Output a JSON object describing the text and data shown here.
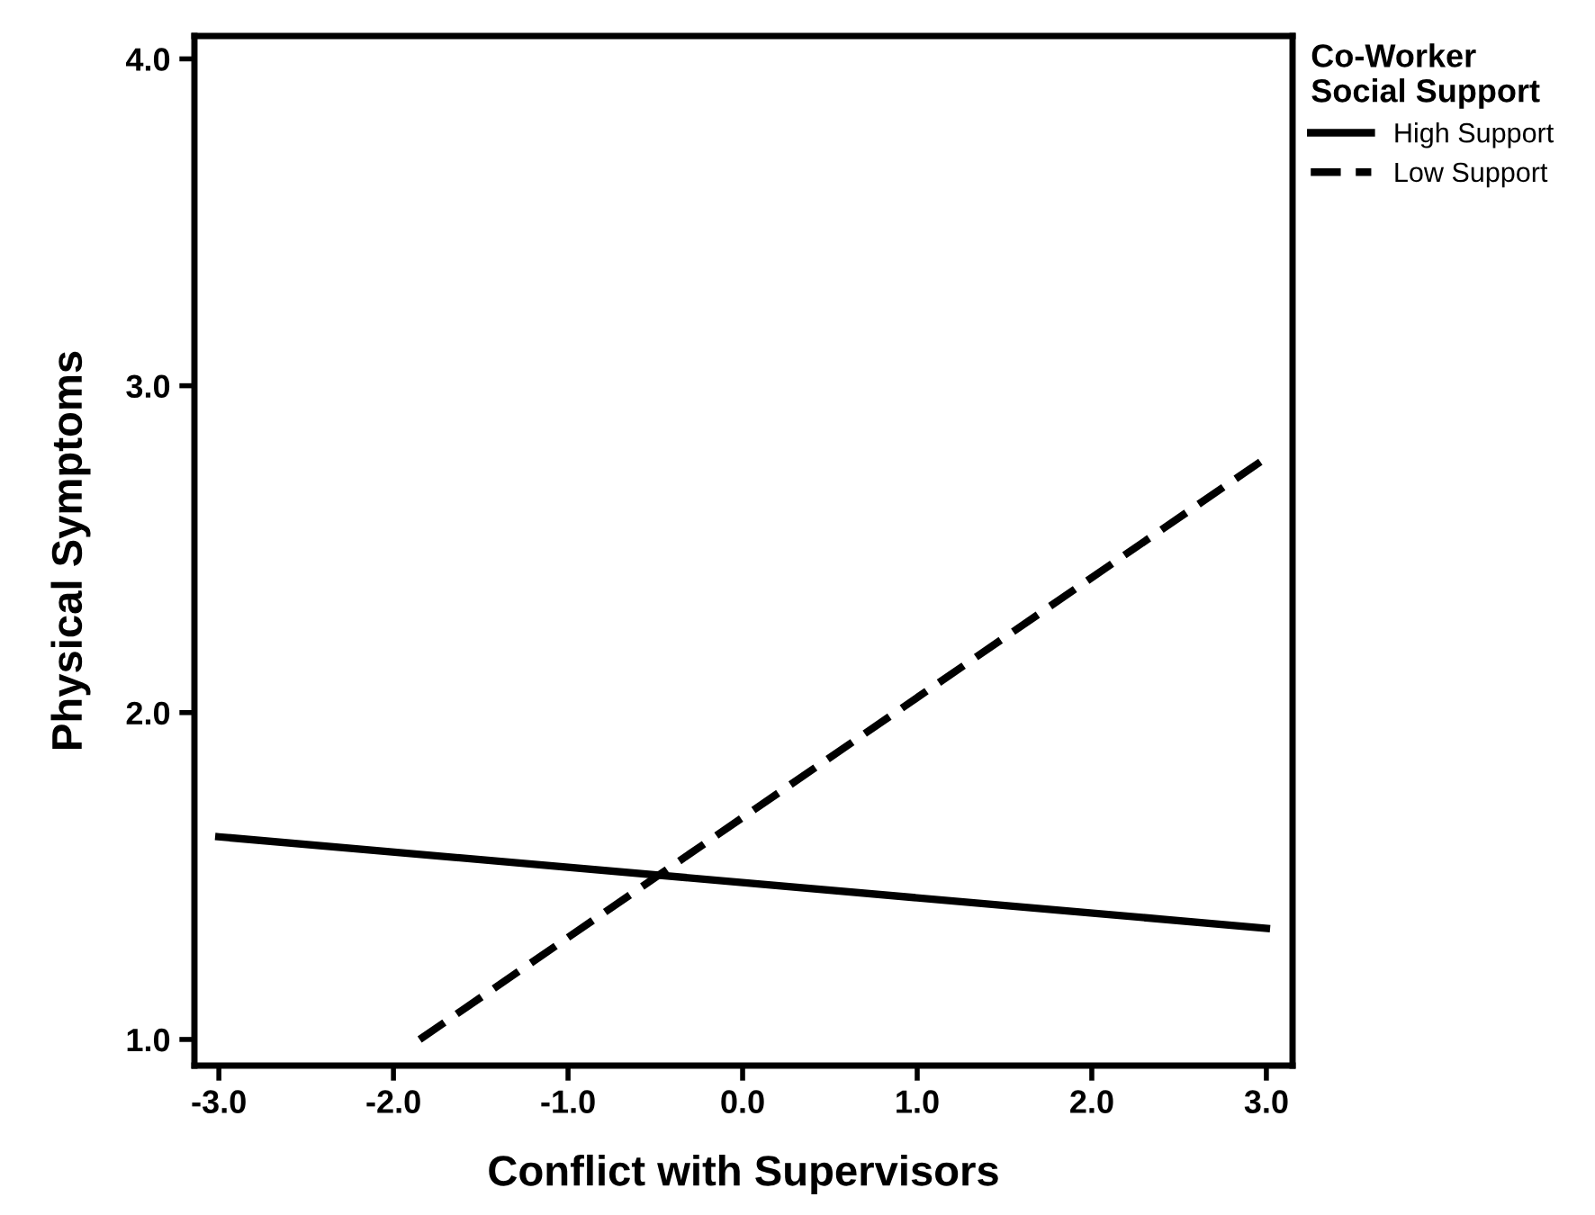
{
  "chart_data": {
    "type": "line",
    "xlabel": "Conflict with Supervisors",
    "ylabel": "Physical Symptoms",
    "legend_title": "Co-Worker\nSocial Support",
    "legend": "top right",
    "grid": false,
    "marker": "none",
    "xlim": [
      -3.14,
      3.15
    ],
    "xticks": [
      {
        "value": -3,
        "label": "-3.0"
      },
      {
        "value": -2,
        "label": "-2.0"
      },
      {
        "value": -1,
        "label": "-1.0"
      },
      {
        "value": 0,
        "label": "0.0"
      },
      {
        "value": 1,
        "label": "1.0"
      },
      {
        "value": 2,
        "label": "2.0"
      },
      {
        "value": 3,
        "label": "3.0"
      }
    ],
    "ylim": [
      0.92,
      4.07
    ],
    "yticks": [
      {
        "value": 1,
        "label": "1.0"
      },
      {
        "value": 2,
        "label": "2.0"
      },
      {
        "value": 3,
        "label": "3.0"
      },
      {
        "value": 4,
        "label": "4.0"
      }
    ],
    "series": [
      {
        "name": "High Support",
        "color": "#000000",
        "line_style": "solid",
        "x": [
          -3,
          3
        ],
        "values": [
          1.62,
          1.34
        ]
      },
      {
        "name": "Low Support",
        "color": "#000000",
        "line_style": "dashed",
        "x": [
          -1.85,
          3
        ],
        "values": [
          1.0,
          2.78
        ]
      }
    ]
  }
}
